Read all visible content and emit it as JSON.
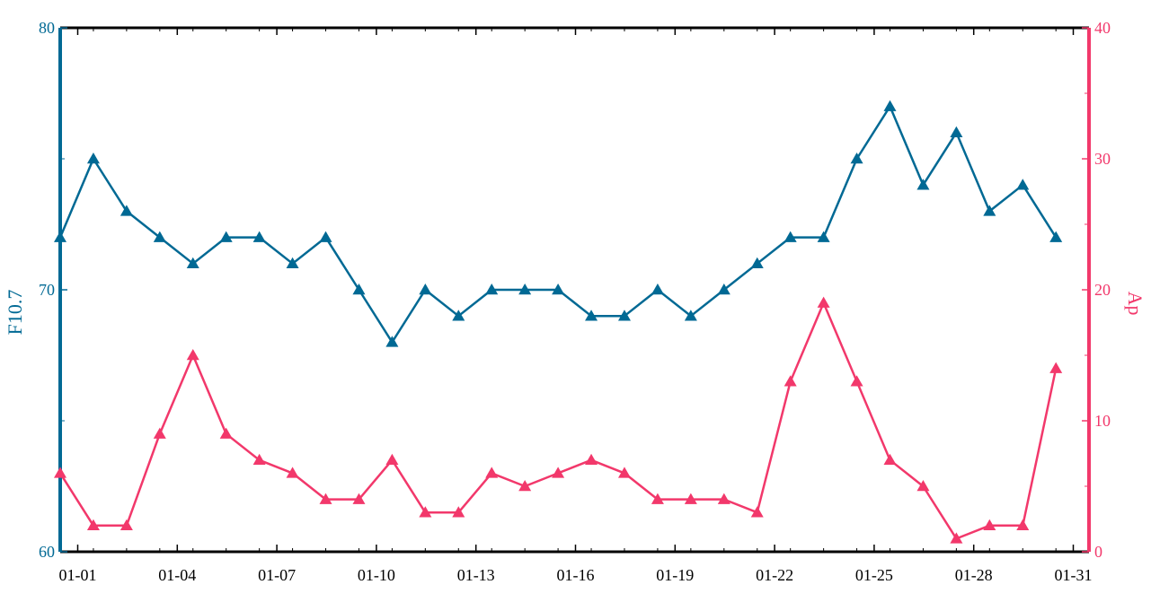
{
  "chart_data": {
    "type": "line",
    "x_tick_labels": [
      "01-01",
      "01-04",
      "01-07",
      "01-10",
      "01-13",
      "01-16",
      "01-19",
      "01-22",
      "01-25",
      "01-28",
      "01-31"
    ],
    "y_left": {
      "label": "F10.7",
      "range": [
        60,
        80
      ],
      "ticks": [
        "60",
        "70",
        "80"
      ],
      "color": "#006994"
    },
    "y_right": {
      "label": "Ap",
      "range": [
        0,
        40
      ],
      "ticks": [
        "0",
        "10",
        "20",
        "30",
        "40"
      ],
      "color": "#F2386B"
    },
    "series": [
      {
        "axis": "left",
        "color": "#006994",
        "marker": "triangle",
        "values": [
          72,
          75,
          73,
          72,
          71,
          72,
          72,
          71,
          72,
          70,
          68,
          70,
          69,
          70,
          70,
          70,
          69,
          69,
          70,
          69,
          70,
          71,
          72,
          72,
          75,
          77,
          74,
          76,
          73,
          74,
          72
        ]
      },
      {
        "axis": "right",
        "color": "#F2386B",
        "marker": "triangle",
        "values": [
          6,
          2,
          2,
          9,
          15,
          9,
          7,
          6,
          4,
          4,
          7,
          3,
          3,
          6,
          5,
          6,
          7,
          6,
          4,
          4,
          4,
          3,
          13,
          19,
          13,
          7,
          5,
          1,
          2,
          2,
          14
        ]
      }
    ],
    "grid": false,
    "legend": "none"
  }
}
